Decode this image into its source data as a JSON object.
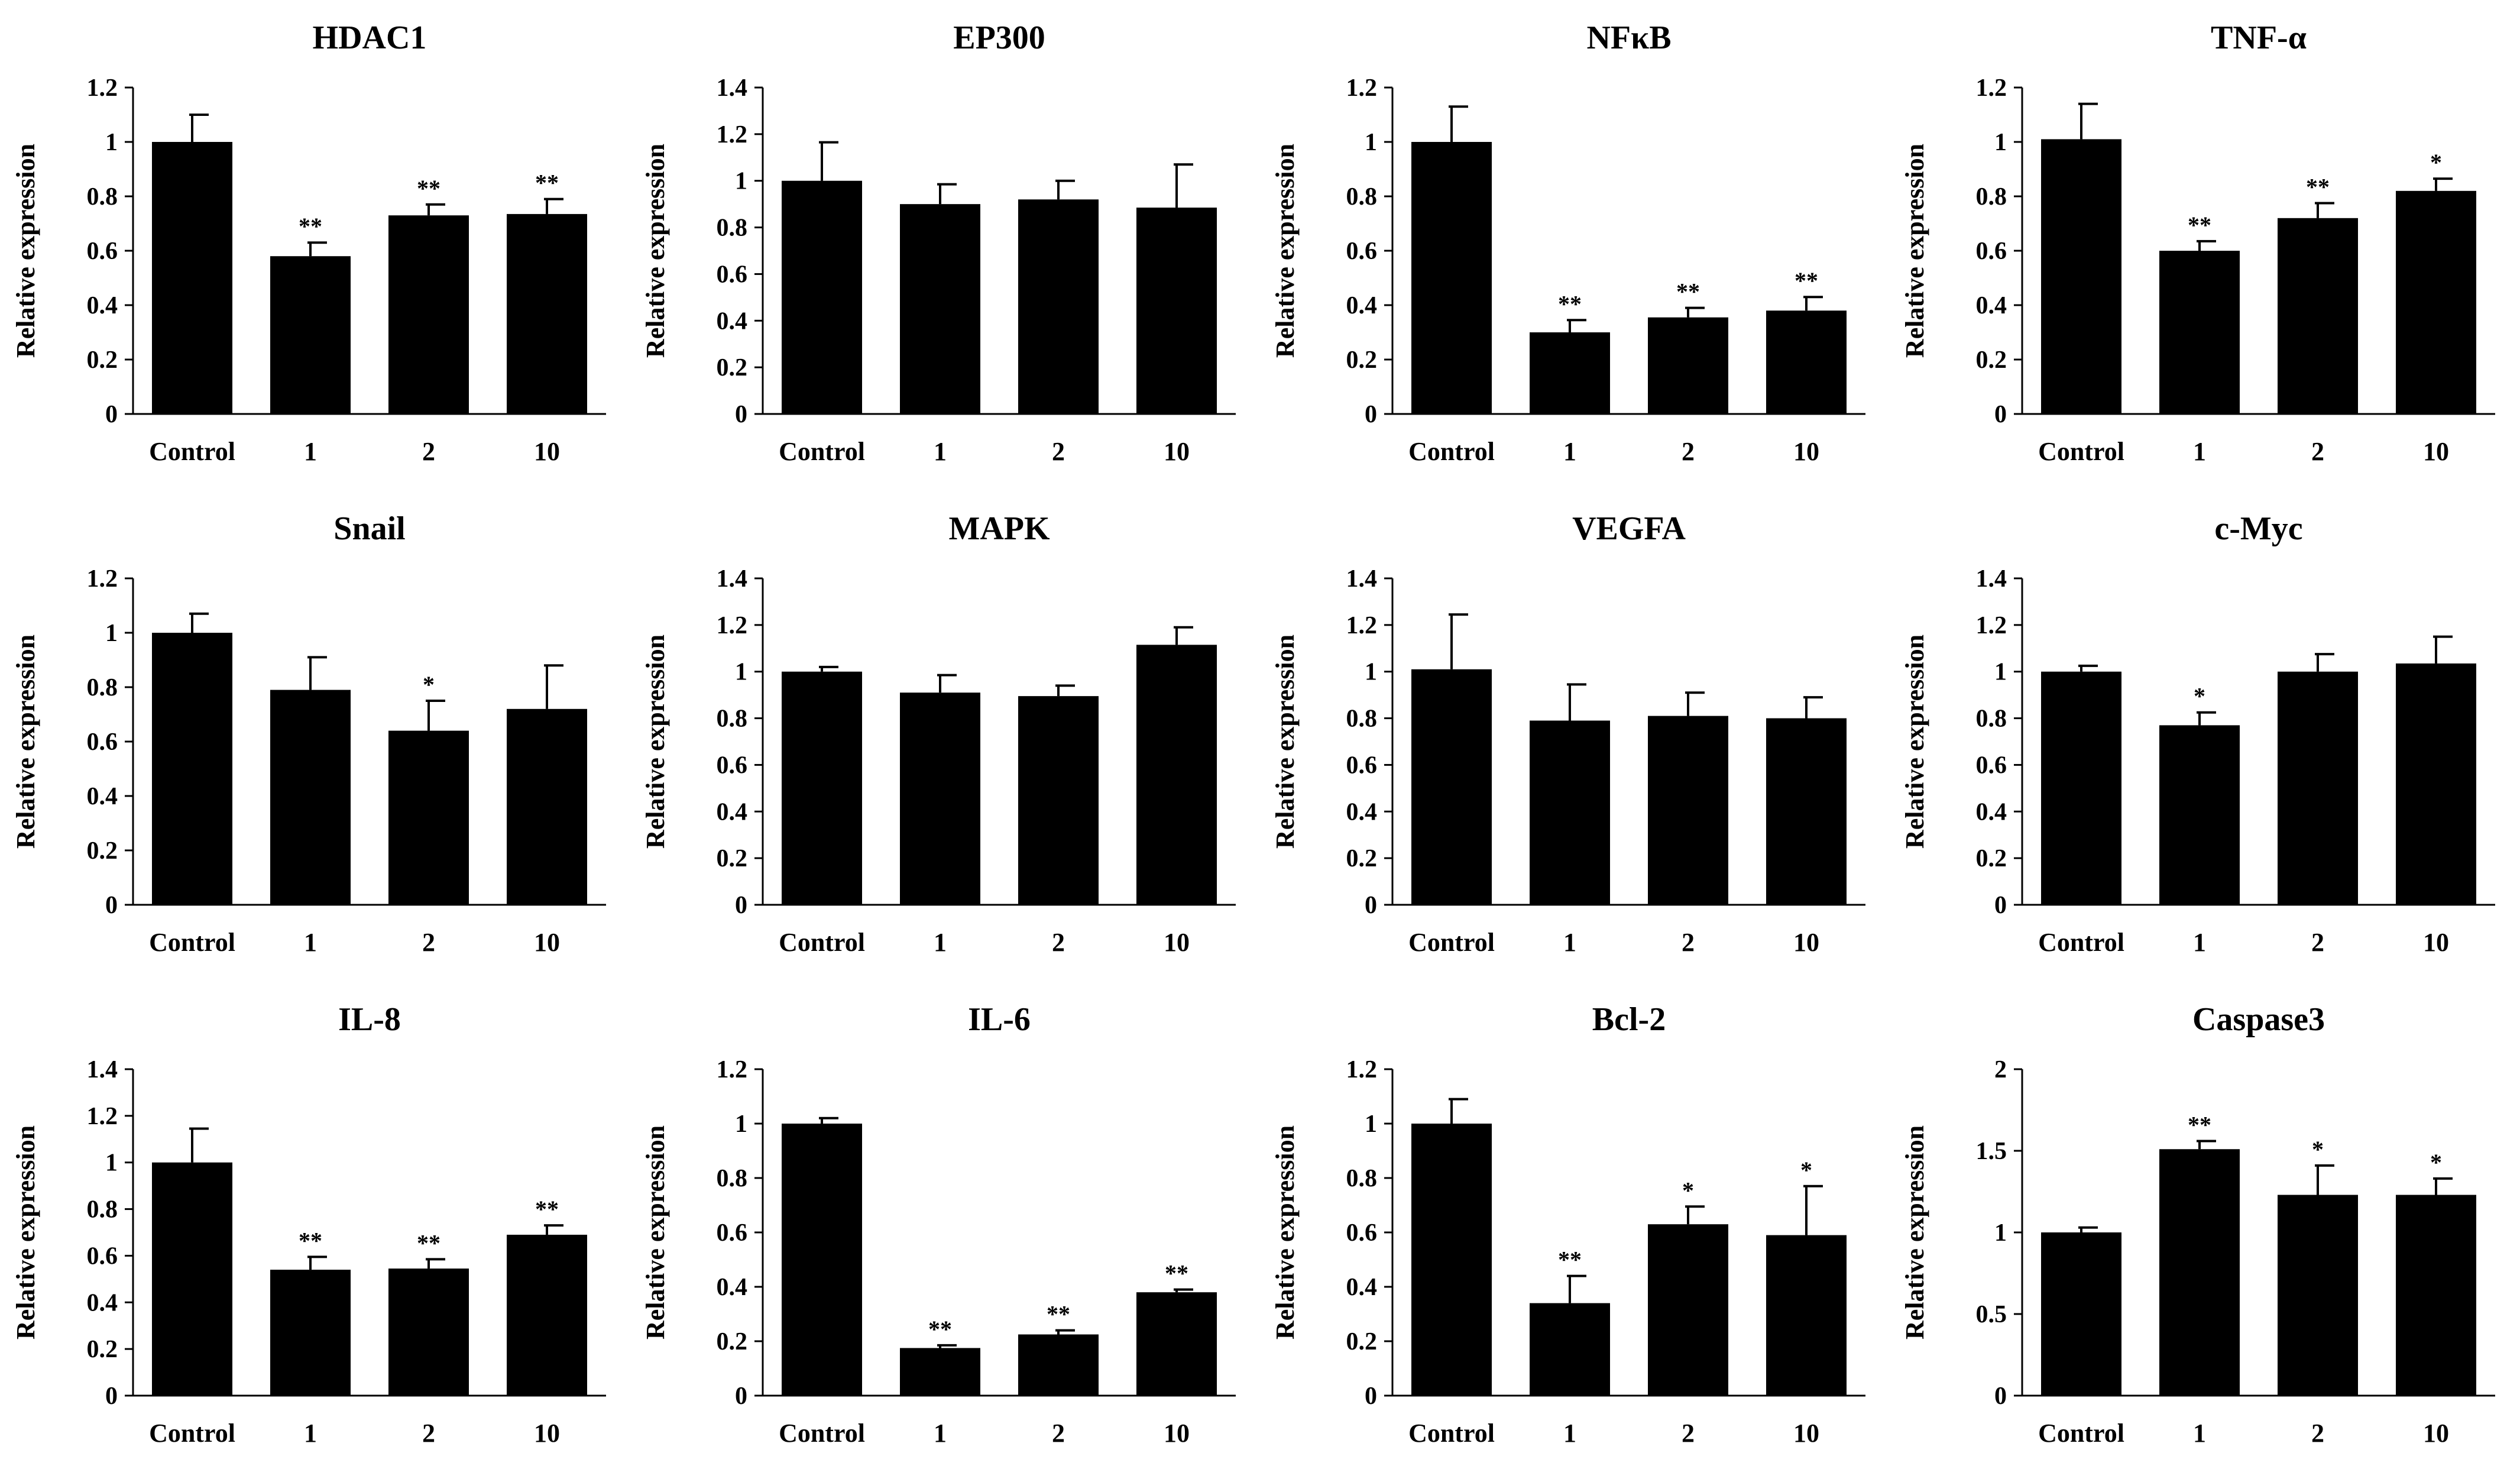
{
  "chart_data": [
    {
      "type": "bar",
      "title": "HDAC1",
      "ylabel": "Relative expression",
      "ylim": [
        0,
        1.2
      ],
      "yticks": [
        "0",
        "0.2",
        "0.4",
        "0.6",
        "0.8",
        "1",
        "1.2"
      ],
      "categories": [
        "Control",
        "1",
        "2",
        "10"
      ],
      "values": [
        1.0,
        0.58,
        0.73,
        0.735
      ],
      "errors": [
        0.1,
        0.05,
        0.04,
        0.055
      ],
      "significance": [
        "",
        "**",
        "**",
        "**"
      ]
    },
    {
      "type": "bar",
      "title": "EP300",
      "ylabel": "Relative expression",
      "ylim": [
        0,
        1.4
      ],
      "yticks": [
        "0",
        "0.2",
        "0.4",
        "0.6",
        "0.8",
        "1",
        "1.2",
        "1.4"
      ],
      "categories": [
        "Control",
        "1",
        "2",
        "10"
      ],
      "values": [
        1.0,
        0.9,
        0.92,
        0.885
      ],
      "errors": [
        0.165,
        0.085,
        0.08,
        0.185
      ],
      "significance": [
        "",
        "",
        "",
        ""
      ]
    },
    {
      "type": "bar",
      "title": "NFκB",
      "ylabel": "Relative expression",
      "ylim": [
        0,
        1.2
      ],
      "yticks": [
        "0",
        "0.2",
        "0.4",
        "0.6",
        "0.8",
        "1",
        "1.2"
      ],
      "categories": [
        "Control",
        "1",
        "2",
        "10"
      ],
      "values": [
        1.0,
        0.3,
        0.355,
        0.38
      ],
      "errors": [
        0.13,
        0.045,
        0.035,
        0.05
      ],
      "significance": [
        "",
        "**",
        "**",
        "**"
      ]
    },
    {
      "type": "bar",
      "title": "TNF-α",
      "ylabel": "Relative expression",
      "ylim": [
        0,
        1.2
      ],
      "yticks": [
        "0",
        "0.2",
        "0.4",
        "0.6",
        "0.8",
        "1",
        "1.2"
      ],
      "categories": [
        "Control",
        "1",
        "2",
        "10"
      ],
      "values": [
        1.01,
        0.6,
        0.72,
        0.82
      ],
      "errors": [
        0.13,
        0.035,
        0.055,
        0.045
      ],
      "significance": [
        "",
        "**",
        "**",
        "*"
      ]
    },
    {
      "type": "bar",
      "title": "Snail",
      "ylabel": "Relative expression",
      "ylim": [
        0,
        1.2
      ],
      "yticks": [
        "0",
        "0.2",
        "0.4",
        "0.6",
        "0.8",
        "1",
        "1.2"
      ],
      "categories": [
        "Control",
        "1",
        "2",
        "10"
      ],
      "values": [
        1.0,
        0.79,
        0.64,
        0.72
      ],
      "errors": [
        0.07,
        0.12,
        0.11,
        0.16
      ],
      "significance": [
        "",
        "",
        "*",
        ""
      ]
    },
    {
      "type": "bar",
      "title": "MAPK",
      "ylabel": "Relative expression",
      "ylim": [
        0,
        1.4
      ],
      "yticks": [
        "0",
        "0.2",
        "0.4",
        "0.6",
        "0.8",
        "1",
        "1.2",
        "1.4"
      ],
      "categories": [
        "Control",
        "1",
        "2",
        "10"
      ],
      "values": [
        1.0,
        0.91,
        0.895,
        1.115
      ],
      "errors": [
        0.02,
        0.075,
        0.045,
        0.075
      ],
      "significance": [
        "",
        "",
        "",
        ""
      ]
    },
    {
      "type": "bar",
      "title": "VEGFA",
      "ylabel": "Relative expression",
      "ylim": [
        0,
        1.4
      ],
      "yticks": [
        "0",
        "0.2",
        "0.4",
        "0.6",
        "0.8",
        "1",
        "1.2",
        "1.4"
      ],
      "categories": [
        "Control",
        "1",
        "2",
        "10"
      ],
      "values": [
        1.01,
        0.79,
        0.81,
        0.8
      ],
      "errors": [
        0.235,
        0.155,
        0.1,
        0.09
      ],
      "significance": [
        "",
        "",
        "",
        ""
      ]
    },
    {
      "type": "bar",
      "title": "c-Myc",
      "ylabel": "Relative expression",
      "ylim": [
        0,
        1.4
      ],
      "yticks": [
        "0",
        "0.2",
        "0.4",
        "0.6",
        "0.8",
        "1",
        "1.2",
        "1.4"
      ],
      "categories": [
        "Control",
        "1",
        "2",
        "10"
      ],
      "values": [
        1.0,
        0.77,
        1.0,
        1.035
      ],
      "errors": [
        0.025,
        0.055,
        0.075,
        0.115
      ],
      "significance": [
        "",
        "*",
        "",
        ""
      ]
    },
    {
      "type": "bar",
      "title": "IL-8",
      "ylabel": "Relative expression",
      "ylim": [
        0,
        1.4
      ],
      "yticks": [
        "0",
        "0.2",
        "0.4",
        "0.6",
        "0.8",
        "1",
        "1.2",
        "1.4"
      ],
      "categories": [
        "Control",
        "1",
        "2",
        "10"
      ],
      "values": [
        1.0,
        0.54,
        0.545,
        0.69
      ],
      "errors": [
        0.145,
        0.055,
        0.04,
        0.04
      ],
      "significance": [
        "",
        "**",
        "**",
        "**"
      ]
    },
    {
      "type": "bar",
      "title": "IL-6",
      "ylabel": "Relative expression",
      "ylim": [
        0,
        1.2
      ],
      "yticks": [
        "0",
        "0.2",
        "0.4",
        "0.6",
        "0.8",
        "1",
        "1.2"
      ],
      "categories": [
        "Control",
        "1",
        "2",
        "10"
      ],
      "values": [
        1.0,
        0.175,
        0.225,
        0.38
      ],
      "errors": [
        0.02,
        0.01,
        0.015,
        0.01
      ],
      "significance": [
        "",
        "**",
        "**",
        "**"
      ]
    },
    {
      "type": "bar",
      "title": "Bcl-2",
      "ylabel": "Relative expression",
      "ylim": [
        0,
        1.2
      ],
      "yticks": [
        "0",
        "0.2",
        "0.4",
        "0.6",
        "0.8",
        "1",
        "1.2"
      ],
      "categories": [
        "Control",
        "1",
        "2",
        "10"
      ],
      "values": [
        1.0,
        0.34,
        0.63,
        0.59
      ],
      "errors": [
        0.09,
        0.1,
        0.065,
        0.18
      ],
      "significance": [
        "",
        "**",
        "*",
        "*"
      ]
    },
    {
      "type": "bar",
      "title": "Caspase3",
      "ylabel": "Relative expression",
      "ylim": [
        0,
        2
      ],
      "yticks": [
        "0",
        "0.5",
        "1",
        "1.5",
        "2"
      ],
      "categories": [
        "Control",
        "1",
        "2",
        "10"
      ],
      "values": [
        1.0,
        1.51,
        1.23,
        1.23
      ],
      "errors": [
        0.03,
        0.05,
        0.18,
        0.1
      ],
      "significance": [
        "",
        "**",
        "*",
        "*"
      ]
    }
  ],
  "style": {
    "bar_color": "#000000",
    "axis_color": "#000000",
    "background": "#ffffff"
  }
}
